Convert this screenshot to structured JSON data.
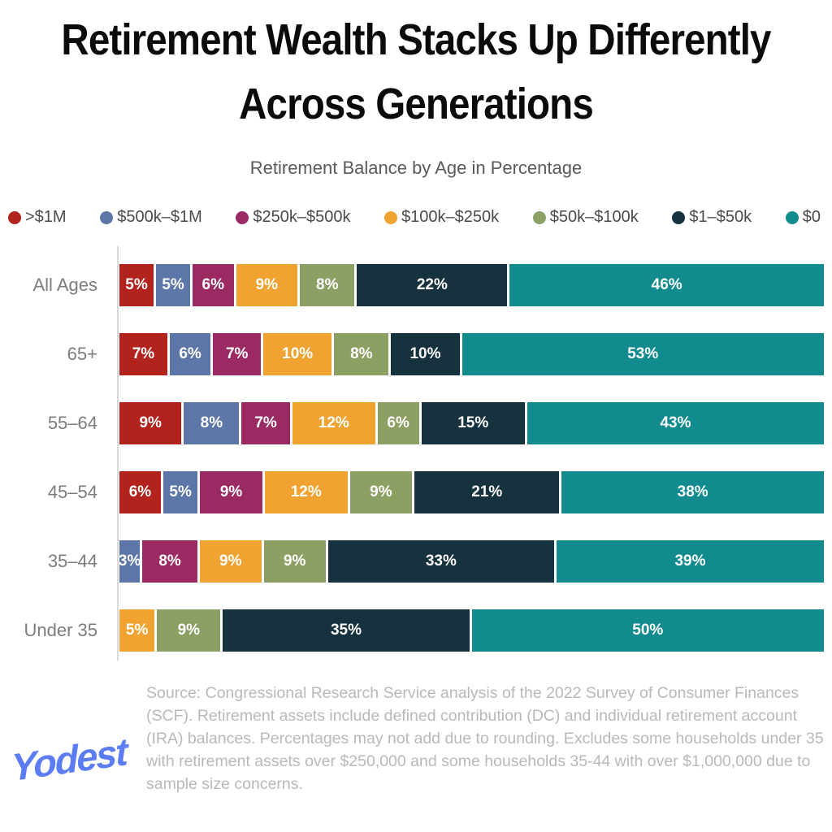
{
  "title": {
    "line1": "Retirement Wealth Stacks Up Differently",
    "line2": "Across Generations"
  },
  "subtitle": "Retirement Balance by Age in Percentage",
  "brand": "Yodest",
  "source_note": "Source: Congressional Research Service analysis of the 2022 Survey of Consumer Finances (SCF). Retirement assets include defined contribution (DC) and individual retirement account (IRA) balances. Percentages may not add due to rounding. Excludes some households under 35 with retirement assets over $250,000 and some households 35-44 with over $1,000,000 due to sample size concerns.",
  "colors": {
    "title_text": "#0b0b0b",
    "subtitle_text": "#5a5a5a",
    "row_label_text": "#7d7d7d",
    "legend_text": "#4a4a4a",
    "note_text": "#b9b9b9",
    "axis_line": "#d9d9d9",
    "bar_value_text": "#ffffff",
    "brand_blue": "#5b7cf2"
  },
  "chart_data": {
    "type": "bar",
    "variant": "horizontal-stacked-100",
    "title": "Retirement Wealth Stacks Up Differently Across Generations",
    "subtitle": "Retirement Balance by Age in Percentage",
    "value_suffix": "%",
    "legend_position": "top",
    "grid": false,
    "categories": [
      "All Ages",
      "65+",
      "55–64",
      "45–54",
      "35–44",
      "Under 35"
    ],
    "series": [
      {
        "name": ">$1M",
        "color": "#b2231d",
        "values": [
          5,
          7,
          9,
          6,
          null,
          null
        ]
      },
      {
        "name": "$500k–$1M",
        "color": "#5c76a8",
        "values": [
          5,
          6,
          8,
          5,
          3,
          null
        ]
      },
      {
        "name": "$250k–$500k",
        "color": "#9b2a63",
        "values": [
          6,
          7,
          7,
          9,
          8,
          null
        ]
      },
      {
        "name": "$100k–$250k",
        "color": "#f0a330",
        "values": [
          9,
          10,
          12,
          12,
          9,
          5
        ]
      },
      {
        "name": "$50k–$100k",
        "color": "#8ca063",
        "values": [
          8,
          8,
          6,
          9,
          9,
          9
        ]
      },
      {
        "name": "$1–$50k",
        "color": "#16323e",
        "values": [
          22,
          10,
          15,
          21,
          33,
          35
        ]
      },
      {
        "name": "$0",
        "color": "#118b8e",
        "values": [
          46,
          53,
          43,
          38,
          39,
          50
        ]
      }
    ]
  }
}
